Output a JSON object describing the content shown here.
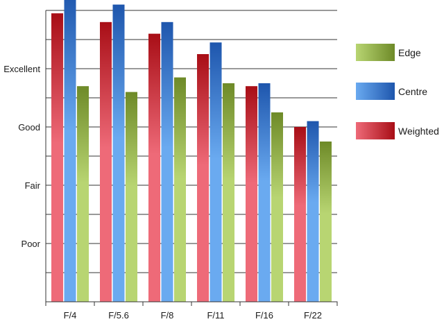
{
  "chart_data": {
    "type": "bar",
    "title": "",
    "xlabel": "",
    "ylabel": "",
    "categories": [
      "F/4",
      "F/5.6",
      "F/8",
      "F/11",
      "F/16",
      "F/22"
    ],
    "y_tick_labels": [
      {
        "label": "Poor",
        "value": 2
      },
      {
        "label": "Fair",
        "value": 4
      },
      {
        "label": "Good",
        "value": 6
      },
      {
        "label": "Excellent",
        "value": 8
      }
    ],
    "ylim": [
      0,
      10
    ],
    "grid": true,
    "legend_position": "right",
    "series": [
      {
        "name": "Weighted",
        "color_light": "#ee6a78",
        "color_dark": "#a80e16",
        "values": [
          9.9,
          9.6,
          9.2,
          8.5,
          7.4,
          6.0
        ]
      },
      {
        "name": "Centre",
        "color_light": "#6aaaf0",
        "color_dark": "#1e56ad",
        "values": [
          10.6,
          10.2,
          9.6,
          8.9,
          7.5,
          6.2
        ]
      },
      {
        "name": "Edge",
        "color_light": "#b8d572",
        "color_dark": "#6e8a28",
        "values": [
          7.4,
          7.2,
          7.7,
          7.5,
          6.5,
          5.5
        ]
      }
    ],
    "legend": [
      {
        "name": "Edge",
        "color_light": "#b8d572",
        "color_dark": "#6e8a28"
      },
      {
        "name": "Centre",
        "color_light": "#6aaaf0",
        "color_dark": "#1e56ad"
      },
      {
        "name": "Weighted",
        "color_light": "#ee6a78",
        "color_dark": "#a80e16"
      }
    ]
  }
}
